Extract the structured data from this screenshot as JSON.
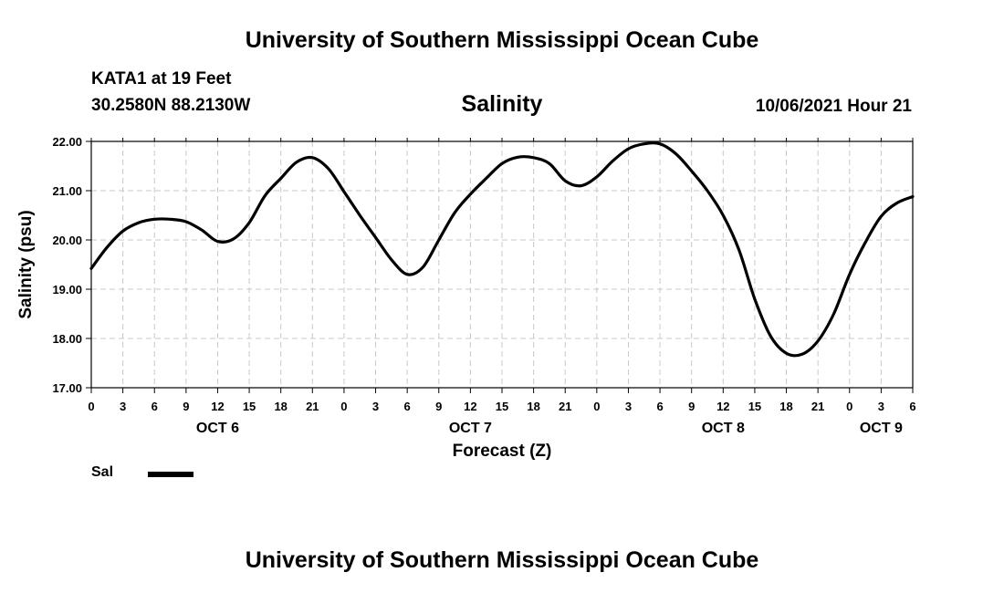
{
  "header": {
    "title": "University of Southern Mississippi Ocean Cube",
    "station": "KATA1 at 19 Feet",
    "coords": "30.2580N  88.2130W",
    "subtitle": "Salinity",
    "timestamp": "10/06/2021 Hour 21"
  },
  "footer": {
    "title": "University of Southern Mississippi Ocean Cube"
  },
  "legend": {
    "label": "Sal",
    "color": "#000000"
  },
  "chart_data": {
    "type": "line",
    "title": "Salinity",
    "xlabel": "Forecast (Z)",
    "ylabel": "Salinity (psu)",
    "xlim": [
      0,
      78
    ],
    "ylim": [
      17,
      22
    ],
    "y_ticks": [
      "17.00",
      "18.00",
      "19.00",
      "20.00",
      "21.00",
      "22.00"
    ],
    "x_tick_labels": [
      "0",
      "3",
      "6",
      "9",
      "12",
      "15",
      "18",
      "21",
      "0",
      "3",
      "6",
      "9",
      "12",
      "15",
      "18",
      "21",
      "0",
      "3",
      "6",
      "9",
      "12",
      "15",
      "18",
      "21",
      "0",
      "3",
      "6"
    ],
    "date_labels": [
      {
        "label": "OCT 6",
        "hour": 12
      },
      {
        "label": "OCT 7",
        "hour": 36
      },
      {
        "label": "OCT 8",
        "hour": 60
      },
      {
        "label": "OCT 9",
        "hour": 75
      }
    ],
    "grid": true,
    "series": [
      {
        "name": "Sal",
        "color": "#000000",
        "x": [
          0,
          1.5,
          3,
          4.5,
          6,
          7.5,
          9,
          10.5,
          12,
          13.5,
          15,
          16.5,
          18,
          19.5,
          21,
          22.5,
          24,
          25.5,
          27,
          28.5,
          30,
          31.5,
          33,
          34.5,
          36,
          37.5,
          39,
          40.5,
          42,
          43.5,
          45,
          46.5,
          48,
          49.5,
          51,
          52.5,
          54,
          55.5,
          57,
          58.5,
          60,
          61.5,
          63,
          64.5,
          66,
          67.5,
          69,
          70.5,
          72,
          73.5,
          75,
          76.5,
          78
        ],
        "values": [
          19.42,
          19.85,
          20.18,
          20.35,
          20.42,
          20.42,
          20.37,
          20.2,
          19.97,
          20.02,
          20.35,
          20.9,
          21.25,
          21.58,
          21.67,
          21.45,
          20.98,
          20.5,
          20.05,
          19.6,
          19.3,
          19.45,
          20.0,
          20.55,
          20.93,
          21.25,
          21.55,
          21.68,
          21.67,
          21.55,
          21.2,
          21.1,
          21.28,
          21.6,
          21.85,
          21.95,
          21.95,
          21.75,
          21.4,
          21.0,
          20.5,
          19.8,
          18.8,
          18.05,
          17.7,
          17.68,
          17.95,
          18.5,
          19.3,
          19.95,
          20.48,
          20.75,
          20.88
        ]
      }
    ]
  }
}
